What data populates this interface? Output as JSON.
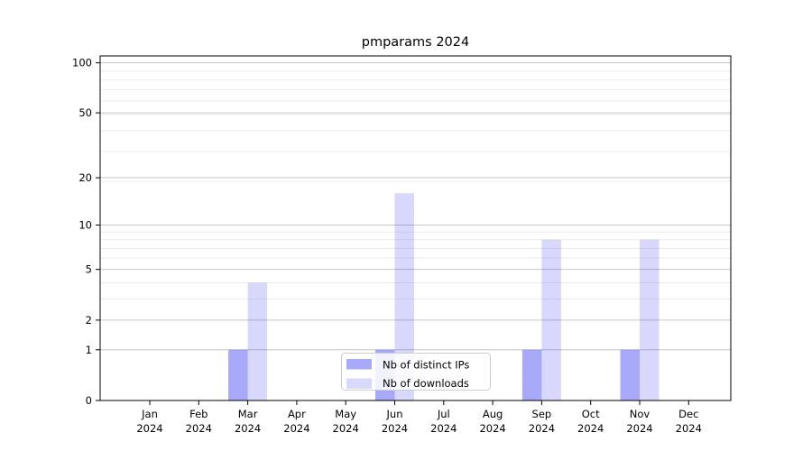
{
  "figure": {
    "background": "#ffffff"
  },
  "chart_data": {
    "type": "bar",
    "title": "pmparams 2024",
    "months": [
      "Jan",
      "Feb",
      "Mar",
      "Apr",
      "May",
      "Jun",
      "Jul",
      "Aug",
      "Sep",
      "Oct",
      "Nov",
      "Dec"
    ],
    "year_label": "2024",
    "series": [
      {
        "name": "Nb of distinct IPs",
        "color": "#0a0af0",
        "fill_opacity": 0.35,
        "values": [
          0,
          0,
          1,
          0,
          0,
          1,
          0,
          0,
          1,
          0,
          1,
          0
        ]
      },
      {
        "name": "Nb of downloads",
        "color": "#0a0af0",
        "fill_opacity": 0.16,
        "values": [
          0,
          0,
          4,
          0,
          0,
          16,
          0,
          0,
          8,
          0,
          8,
          0
        ]
      }
    ],
    "yticks": [
      100,
      50,
      20,
      10,
      5,
      2,
      1,
      0
    ],
    "scale": "log1p",
    "ylim": [
      0,
      110
    ],
    "xlabel": "",
    "ylabel": "",
    "grid": {
      "major": true,
      "minor": true
    },
    "legend_position": "lower center",
    "colors": {
      "major_grid": "#c6c6c6",
      "minor_grid": "#ececec",
      "spine": "#000000",
      "legend_border": "#cccccc",
      "legend_fill": "#ffffff"
    }
  }
}
